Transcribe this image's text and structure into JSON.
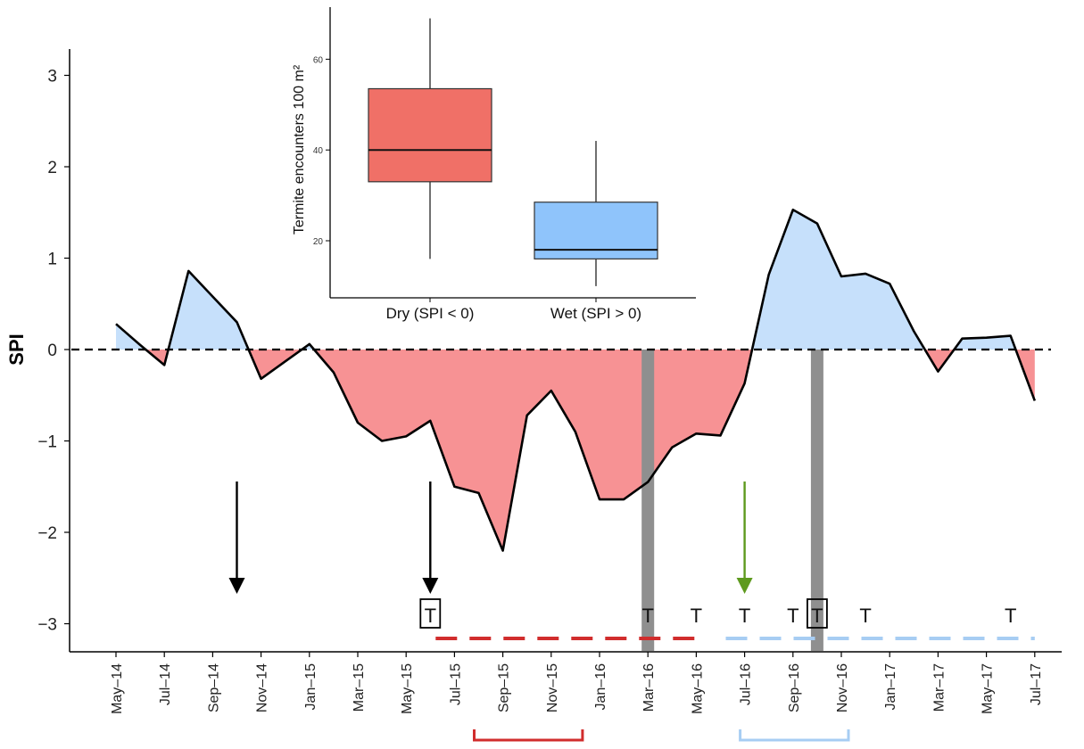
{
  "chart_data": [
    {
      "type": "area",
      "ylabel": "SPI",
      "xlabel": "",
      "ylim": [
        -3.3,
        3.3
      ],
      "y_ticks": [
        -3,
        -2,
        -1,
        0,
        1,
        2,
        3
      ],
      "x_tick_labels": [
        "May–14",
        "Jul–14",
        "Sep–14",
        "Nov–14",
        "Jan–15",
        "Mar–15",
        "May–15",
        "Jul–15",
        "Sep–15",
        "Nov–15",
        "Jan–16",
        "Mar–16",
        "May–16",
        "Jul–16",
        "Sep–16",
        "Nov–16",
        "Jan–17",
        "Mar–17",
        "May–17",
        "Jul–17"
      ],
      "baseline": 0,
      "colors": {
        "positive_fill": "#c6e0fb",
        "negative_fill": "#f79294",
        "line": "#000000",
        "wet_dash": "#a7cdf3",
        "dry_dash": "#d12d2d",
        "green_arrow": "#5e9a1e",
        "grey_band": "#8f8f8f"
      },
      "series": [
        {
          "x": [
            "2014-05",
            "2014-06",
            "2014-07",
            "2014-08",
            "2014-09",
            "2014-10",
            "2014-11",
            "2014-12",
            "2015-01",
            "2015-02",
            "2015-03",
            "2015-04",
            "2015-05",
            "2015-06",
            "2015-07",
            "2015-08",
            "2015-09",
            "2015-10",
            "2015-11",
            "2015-12",
            "2016-01",
            "2016-02",
            "2016-03",
            "2016-04",
            "2016-05",
            "2016-06",
            "2016-07",
            "2016-08",
            "2016-09",
            "2016-10",
            "2016-11",
            "2016-12",
            "2017-01",
            "2017-02",
            "2017-03",
            "2017-04",
            "2017-05",
            "2017-06",
            "2017-07"
          ],
          "values": [
            0.28,
            0.05,
            -0.17,
            0.86,
            0.58,
            0.3,
            -0.32,
            -0.13,
            0.06,
            -0.25,
            -0.8,
            -1.0,
            -0.95,
            -0.78,
            -1.5,
            -1.57,
            -2.2,
            -0.72,
            -0.45,
            -0.9,
            -1.64,
            -1.64,
            -1.45,
            -1.07,
            -0.92,
            -0.94,
            -0.37,
            0.82,
            1.53,
            1.38,
            0.8,
            0.83,
            0.72,
            0.2,
            -0.24,
            0.12,
            0.13,
            0.15,
            -0.56
          ]
        }
      ],
      "arrows": [
        {
          "x": "2014-10",
          "color": "black"
        },
        {
          "x": "2015-06",
          "color": "black"
        },
        {
          "x": "2016-07",
          "color": "green"
        }
      ],
      "grey_bands": [
        "2016-03",
        "2016-10"
      ],
      "t_markers": [
        {
          "x": "2015-06",
          "label": "T",
          "boxed": true
        },
        {
          "x": "2016-03",
          "label": "T",
          "boxed": false
        },
        {
          "x": "2016-05",
          "label": "T",
          "boxed": false
        },
        {
          "x": "2016-07",
          "label": "T",
          "boxed": false
        },
        {
          "x": "2016-09",
          "label": "T",
          "boxed": false
        },
        {
          "x": "2016-10",
          "label": "T",
          "boxed": true
        },
        {
          "x": "2016-12",
          "label": "T",
          "boxed": false
        },
        {
          "x": "2017-06",
          "label": "T",
          "boxed": false
        }
      ],
      "dashed_periods": [
        {
          "from": "2015-06",
          "to": "2016-05",
          "color": "red"
        },
        {
          "from": "2016-06",
          "to": "2017-07",
          "color": "blue"
        }
      ],
      "brackets": [
        {
          "from": "2015-08",
          "to": "2015-12",
          "color": "red"
        },
        {
          "from": "2016-07",
          "to": "2016-11",
          "color": "blue"
        }
      ]
    },
    {
      "type": "box",
      "ylabel": "Termite encounters 100 m²",
      "categories": [
        "Dry (SPI < 0)",
        "Wet (SPI > 0)"
      ],
      "y_ticks": [
        20,
        40,
        60
      ],
      "ylim": [
        8,
        72
      ],
      "boxes": [
        {
          "name": "Dry (SPI < 0)",
          "min": 16,
          "q1": 33,
          "median": 40,
          "q3": 53.5,
          "max": 69,
          "color": "#f07067"
        },
        {
          "name": "Wet (SPI > 0)",
          "min": 10,
          "q1": 16,
          "median": 18,
          "q3": 28.5,
          "max": 42,
          "color": "#8fc4fb"
        }
      ]
    }
  ]
}
